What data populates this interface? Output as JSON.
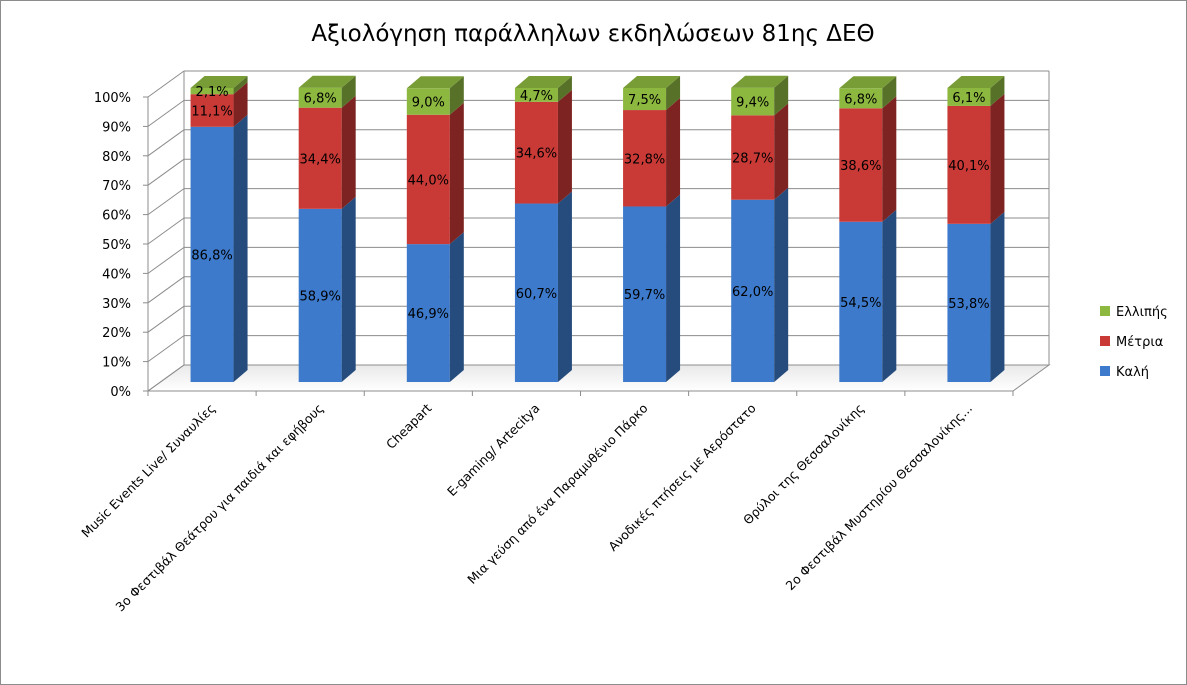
{
  "chart_data": {
    "type": "bar",
    "stacked": true,
    "percent_stacked": true,
    "three_d": true,
    "title": "Αξιολόγηση παράλληλων εκδηλώσεων 81ης ΔΕΘ",
    "xlabel": "",
    "ylabel": "",
    "ylim": [
      0,
      100
    ],
    "y_ticks": [
      "0%",
      "10%",
      "20%",
      "30%",
      "40%",
      "50%",
      "60%",
      "70%",
      "80%",
      "90%",
      "100%"
    ],
    "grid": true,
    "legend_position": "right",
    "categories": [
      "Music Events Live/ Συναυλίες",
      "3ο Φεστιβάλ Θεάτρου για παιδιά και εφήβους",
      "Cheapart",
      "E-gaming/ Artecitya",
      "Μια γεύση από ένα Παραμυθένιο Πάρκο",
      "Ανοδικές πτήσεις με Αερόστατο",
      "Θρύλοι της Θεσσαλονίκης",
      "2ο Φεστιβάλ Μυστηρίου Θεσσαλονίκης..."
    ],
    "series": [
      {
        "name": "Καλή",
        "color": "#3d7acb",
        "values": [
          86.8,
          58.9,
          46.9,
          60.7,
          59.7,
          62.0,
          54.5,
          53.8
        ],
        "labels": [
          "86,8%",
          "58,9%",
          "46,9%",
          "60,7%",
          "59,7%",
          "62,0%",
          "54,5%",
          "53,8%"
        ]
      },
      {
        "name": "Μέτρια",
        "color": "#c93a37",
        "values": [
          11.1,
          34.4,
          44.0,
          34.6,
          32.8,
          28.7,
          38.6,
          40.1
        ],
        "labels": [
          "11,1%",
          "34,4%",
          "44,0%",
          "34,6%",
          "32,8%",
          "28,7%",
          "38,6%",
          "40,1%"
        ]
      },
      {
        "name": "Ελλιπής",
        "color": "#8db840",
        "values": [
          2.1,
          6.8,
          9.0,
          4.7,
          7.5,
          9.4,
          6.8,
          6.1
        ],
        "labels": [
          "2,1%",
          "6,8%",
          "9,0%",
          "4,7%",
          "7,5%",
          "9,4%",
          "6,8%",
          "6,1%"
        ]
      }
    ],
    "legend_order": [
      "Ελλιπής",
      "Μέτρια",
      "Καλή"
    ]
  }
}
